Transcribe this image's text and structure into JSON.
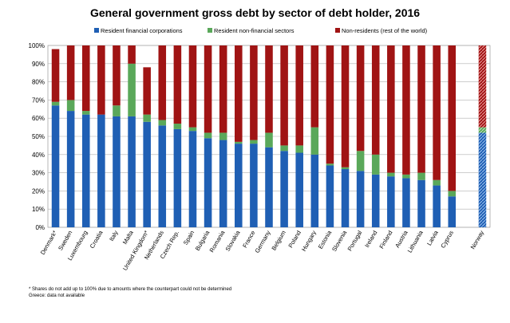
{
  "chart_data": {
    "type": "bar",
    "stacked": true,
    "title": "General government gross debt by sector of debt holder, 2016",
    "xlabel": "",
    "ylabel": "",
    "ylim": [
      0,
      100
    ],
    "y_tick_labels": [
      "0%",
      "10%",
      "20%",
      "30%",
      "40%",
      "50%",
      "60%",
      "70%",
      "80%",
      "90%",
      "100%"
    ],
    "legend_position": "top",
    "grid": true,
    "categories": [
      "Denmark*",
      "Sweden",
      "Luxembourg",
      "Croatia",
      "Italy",
      "Malta",
      "United Kingdom*",
      "Netherlands",
      "Czech Rep.",
      "Spain",
      "Bulgaria",
      "Romania",
      "Slovakia",
      "France",
      "Germany",
      "Belgium",
      "Poland",
      "Hungary",
      "Estonia",
      "Slovenia",
      "Portugal",
      "Ireland",
      "Finland",
      "Austria",
      "Lithuania",
      "Latvia",
      "Cyprus",
      "",
      "Norway"
    ],
    "series": [
      {
        "name": "Resident financial corporations",
        "color": "#1f5fb4",
        "values": [
          67,
          64,
          62,
          62,
          61,
          61,
          58,
          56,
          54,
          53,
          49,
          48,
          46,
          46,
          44,
          42,
          41,
          40,
          34,
          32,
          31,
          29,
          28,
          27,
          26,
          23,
          17,
          null,
          52
        ]
      },
      {
        "name": "Resident non-financial sectors",
        "color": "#5aa85a",
        "values": [
          2,
          6,
          2,
          0,
          6,
          29,
          4,
          3,
          3,
          2,
          3,
          4,
          1,
          2,
          8,
          3,
          4,
          15,
          1,
          1,
          11,
          11,
          2,
          2,
          4,
          3,
          3,
          null,
          3
        ]
      },
      {
        "name": "Non-residents (rest of the world)",
        "color": "#a01414",
        "values": [
          29,
          30,
          36,
          38,
          33,
          10,
          26,
          41,
          43,
          45,
          48,
          48,
          53,
          52,
          48,
          55,
          55,
          45,
          65,
          67,
          58,
          60,
          70,
          71,
          70,
          74,
          80,
          null,
          45
        ]
      }
    ],
    "hatched_categories": [
      "Norway"
    ]
  },
  "footnotes": {
    "note1": "* Shares do not add up to 100% due to amounts where the counterpart could not be determined",
    "note2": "Greece: data not available"
  }
}
